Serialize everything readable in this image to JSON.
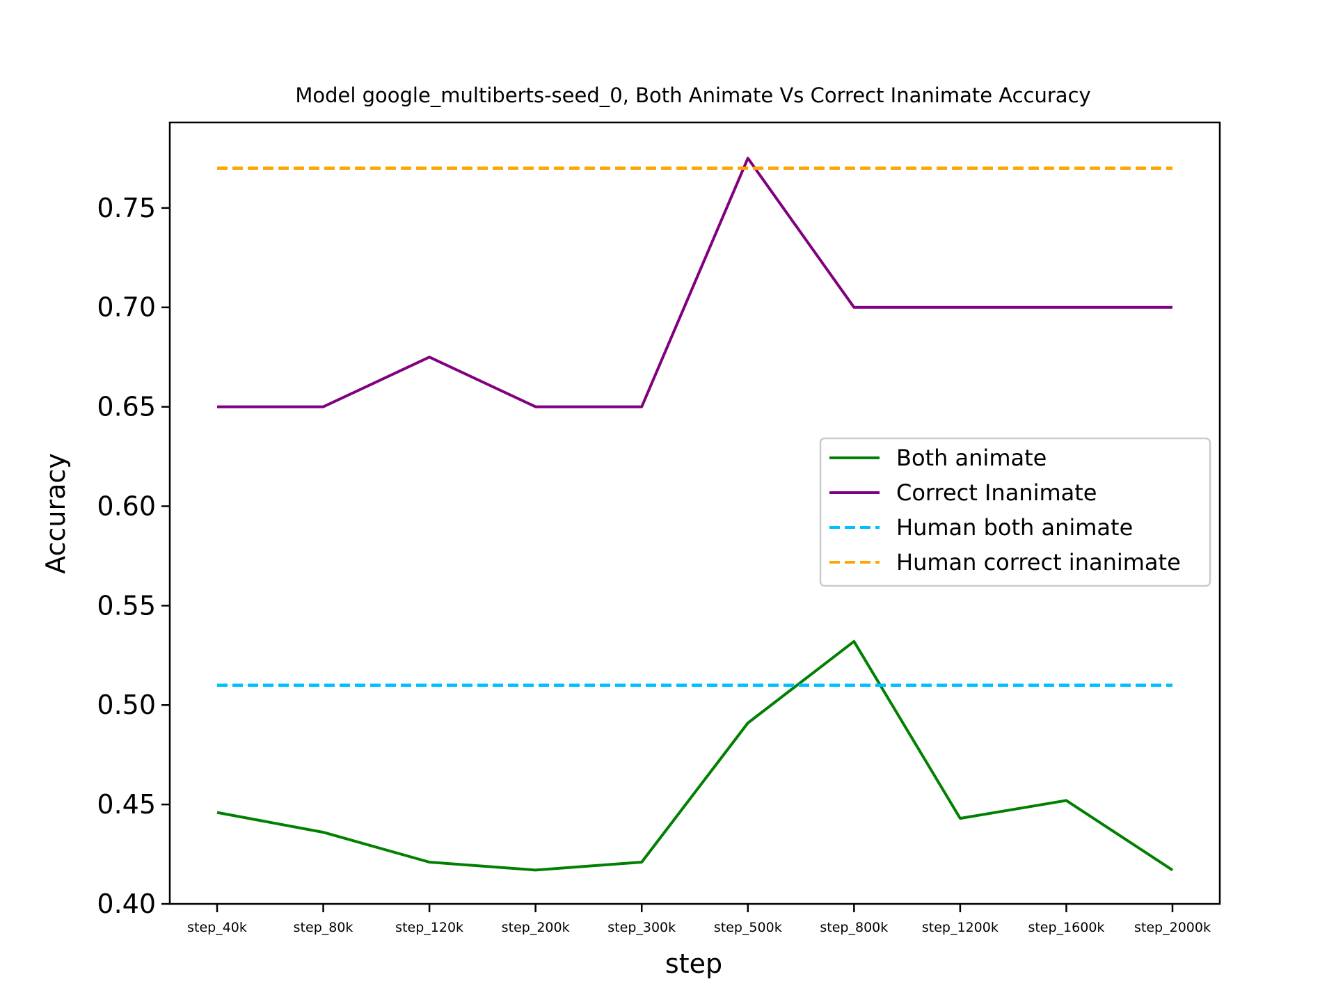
{
  "chart_data": {
    "type": "line",
    "title": "Model google_multiberts-seed_0, Both Animate Vs Correct Inanimate Accuracy",
    "xlabel": "step",
    "ylabel": "Accuracy",
    "categories": [
      "step_40k",
      "step_80k",
      "step_120k",
      "step_200k",
      "step_300k",
      "step_500k",
      "step_800k",
      "step_1200k",
      "step_1600k",
      "step_2000k"
    ],
    "ylim": [
      0.4,
      0.793
    ],
    "yticks": [
      "0.40",
      "0.45",
      "0.50",
      "0.55",
      "0.60",
      "0.65",
      "0.70",
      "0.75"
    ],
    "grid": false,
    "legend_position": "center-right",
    "series": [
      {
        "name": "Both animate",
        "color": "#008000",
        "style": "solid",
        "values": [
          0.446,
          0.436,
          0.421,
          0.417,
          0.421,
          0.491,
          0.532,
          0.443,
          0.452,
          0.417
        ]
      },
      {
        "name": "Correct Inanimate",
        "color": "#800080",
        "style": "solid",
        "values": [
          0.65,
          0.65,
          0.675,
          0.65,
          0.65,
          0.775,
          0.7,
          0.7,
          0.7,
          0.7
        ]
      },
      {
        "name": "Human both animate",
        "color": "#00bfff",
        "style": "dashed",
        "values": [
          0.51,
          0.51,
          0.51,
          0.51,
          0.51,
          0.51,
          0.51,
          0.51,
          0.51,
          0.51
        ]
      },
      {
        "name": "Human correct inanimate",
        "color": "#ffa500",
        "style": "dashed",
        "values": [
          0.77,
          0.77,
          0.77,
          0.77,
          0.77,
          0.77,
          0.77,
          0.77,
          0.77,
          0.77
        ]
      }
    ]
  }
}
